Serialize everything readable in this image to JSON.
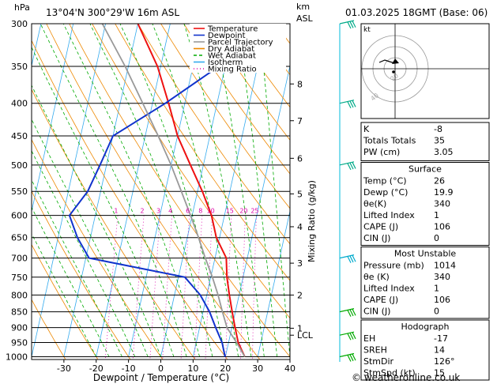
{
  "header": {
    "pressure_unit": "hPa",
    "location": "13°04'N  300°29'W  16m  ASL",
    "height_unit_line1": "km",
    "height_unit_line2": "ASL",
    "datetime": "01.03.2025  18GMT  (Base: 06)"
  },
  "chart_data": {
    "type": "skew-t",
    "xlabel": "Dewpoint / Temperature (°C)",
    "right_axis_label": "Mixing Ratio (g/kg)",
    "x_ticks": [
      -30,
      -20,
      -10,
      0,
      10,
      20,
      30,
      40
    ],
    "xlim": [
      -40,
      40
    ],
    "pressure_levels": [
      300,
      350,
      400,
      450,
      500,
      550,
      600,
      650,
      700,
      750,
      800,
      850,
      900,
      950,
      1000
    ],
    "ylim_hPa": [
      300,
      1010
    ],
    "height_km": [
      {
        "km": "8",
        "p": 373
      },
      {
        "km": "7",
        "p": 426
      },
      {
        "km": "6",
        "p": 488
      },
      {
        "km": "5",
        "p": 555
      },
      {
        "km": "4",
        "p": 625
      },
      {
        "km": "3",
        "p": 713
      },
      {
        "km": "2",
        "p": 800
      },
      {
        "km": "1",
        "p": 902
      },
      {
        "km": "LCL",
        "p": 925
      }
    ],
    "mixing_ratio_labels": [
      "1",
      "2",
      "3",
      "4",
      "6",
      "8",
      "10",
      "15",
      "20",
      "25"
    ],
    "series": [
      {
        "name": "Temperature",
        "color": "#ee1111",
        "points": [
          [
            26,
            1000
          ],
          [
            23,
            950
          ],
          [
            21,
            900
          ],
          [
            19,
            850
          ],
          [
            17,
            800
          ],
          [
            15,
            750
          ],
          [
            13.5,
            700
          ],
          [
            9,
            650
          ],
          [
            6,
            600
          ],
          [
            1.5,
            550
          ],
          [
            -4,
            500
          ],
          [
            -10,
            450
          ],
          [
            -15,
            400
          ],
          [
            -21,
            350
          ],
          [
            -30,
            300
          ]
        ]
      },
      {
        "name": "Dewpoint",
        "color": "#1133cc",
        "points": [
          [
            19.9,
            1000
          ],
          [
            18,
            950
          ],
          [
            15,
            900
          ],
          [
            12,
            850
          ],
          [
            8,
            800
          ],
          [
            2,
            750
          ],
          [
            -29,
            700
          ],
          [
            -34,
            650
          ],
          [
            -38,
            600
          ],
          [
            -34,
            550
          ],
          [
            -32,
            500
          ],
          [
            -30,
            450
          ],
          [
            -16,
            400
          ],
          [
            -2,
            350
          ],
          [
            0,
            300
          ]
        ]
      },
      {
        "name": "Parcel Trajectory",
        "color": "#999999",
        "points": [
          [
            26,
            1000
          ],
          [
            22.5,
            950
          ],
          [
            20.5,
            925
          ],
          [
            18.5,
            900
          ],
          [
            16,
            850
          ],
          [
            13.5,
            800
          ],
          [
            10.5,
            750
          ],
          [
            7,
            700
          ],
          [
            3.5,
            650
          ],
          [
            -0.5,
            600
          ],
          [
            -5,
            550
          ],
          [
            -10,
            500
          ],
          [
            -16,
            450
          ],
          [
            -23,
            400
          ],
          [
            -31,
            350
          ],
          [
            -41,
            300
          ]
        ]
      }
    ],
    "legend": [
      "Temperature",
      "Dewpoint",
      "Parcel Trajectory",
      "Dry Adiabat",
      "Wet Adiabat",
      "Isotherm",
      "Mixing Ratio"
    ],
    "legend_colors": [
      "#ee1111",
      "#1133cc",
      "#999999",
      "#ee8800",
      "#00aa00",
      "#33aaee",
      "#dd00aa"
    ],
    "wind_barb_levels": [
      300,
      400,
      500,
      700,
      850,
      925,
      1000
    ]
  },
  "hodograph": {
    "unit_label": "kt",
    "ring_labels": [
      "20",
      "40"
    ]
  },
  "indices": {
    "block1": [
      {
        "label": "K",
        "value": "-8"
      },
      {
        "label": "Totals Totals",
        "value": "35"
      },
      {
        "label": "PW (cm)",
        "value": "3.05"
      }
    ],
    "surface_title": "Surface",
    "surface": [
      {
        "label": "Temp (°C)",
        "value": "26"
      },
      {
        "label": "Dewp (°C)",
        "value": "19.9"
      },
      {
        "label": "θe(K)",
        "value": "340"
      },
      {
        "label": "Lifted Index",
        "value": "1"
      },
      {
        "label": "CAPE (J)",
        "value": "106"
      },
      {
        "label": "CIN (J)",
        "value": "0"
      }
    ],
    "unstable_title": "Most Unstable",
    "unstable": [
      {
        "label": "Pressure (mb)",
        "value": "1014"
      },
      {
        "label": "θe (K)",
        "value": "340"
      },
      {
        "label": "Lifted Index",
        "value": "1"
      },
      {
        "label": "CAPE (J)",
        "value": "106"
      },
      {
        "label": "CIN (J)",
        "value": "0"
      }
    ],
    "hodo_title": "Hodograph",
    "hodo": [
      {
        "label": "EH",
        "value": "-17"
      },
      {
        "label": "SREH",
        "value": "14"
      },
      {
        "label": "StmDir",
        "value": "126°"
      },
      {
        "label": "StmSpd (kt)",
        "value": "15"
      }
    ]
  },
  "footer": {
    "credit": "© weatheronline.co.uk"
  }
}
